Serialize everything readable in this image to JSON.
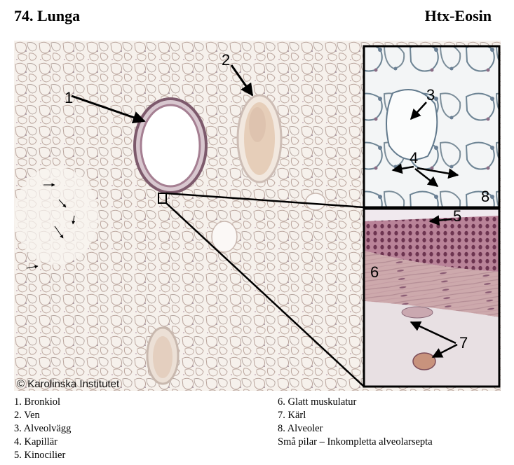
{
  "header": {
    "title": "74. Lunga",
    "stain": "Htx-Eosin"
  },
  "figure": {
    "copyright": "© Karolinska Institutet",
    "labels": {
      "l1": "1",
      "l2": "2",
      "l3": "3",
      "l4": "4",
      "l5": "5",
      "l6": "6",
      "l7": "7",
      "l8": "8"
    }
  },
  "legend": {
    "left": [
      "1. Bronkiol",
      "2. Ven",
      "3. Alveolvägg",
      "4. Kapillär",
      "5. Kinocilier"
    ],
    "right": [
      "6. Glatt muskulatur",
      "7. Kärl",
      "8. Alveoler",
      "Små pilar – Inkompletta alveolarsepta"
    ]
  },
  "colors": {
    "tissue_background": "#f4efe9",
    "alveolar_wall": "#b9a49c",
    "bronchiole_wall": "#8e6a7a",
    "vein_content": "#e8d3c2",
    "muscle": "#c7a7ab",
    "epithelium": "#8a4f68"
  }
}
